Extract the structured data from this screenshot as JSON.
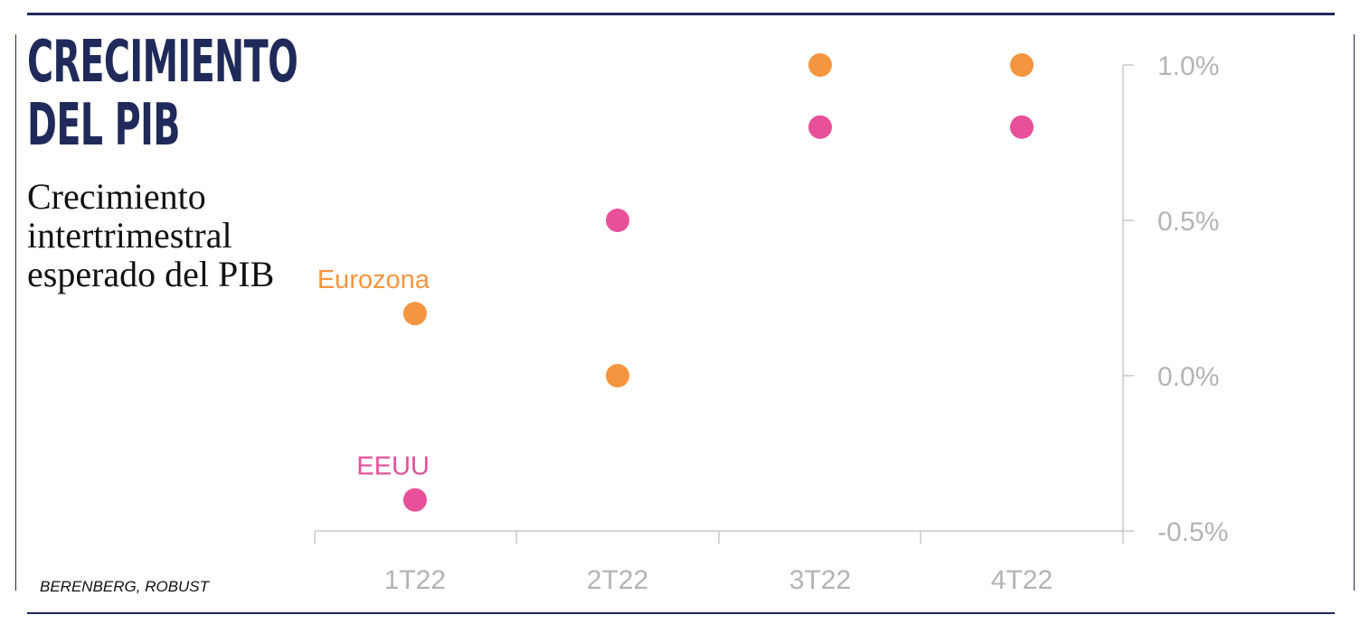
{
  "header": {
    "title_line1": "CRECIMIENTO",
    "title_line2": "DEL PIB",
    "subtitle": "Crecimiento intertrimestral esperado del PIB"
  },
  "footer": {
    "source": "BERENBERG, ROBUST"
  },
  "colors": {
    "rule": "#1f2a5a",
    "axis": "#c8c8c8",
    "tick_text": "#b4b4b4",
    "eurozona": "#f5953f",
    "eeuu": "#e8509a"
  },
  "chart_data": {
    "type": "scatter",
    "title": "CRECIMIENTO DEL PIB",
    "subtitle": "Crecimiento intertrimestral esperado del PIB",
    "categories": [
      "1T22",
      "2T22",
      "3T22",
      "4T22"
    ],
    "y_ticks": [
      "1.0%",
      "0.5%",
      "0.0%",
      "-0.5%"
    ],
    "y_tick_values": [
      1.0,
      0.5,
      0.0,
      -0.5
    ],
    "ylim": [
      -0.5,
      1.0
    ],
    "y_unit": "%",
    "y_axis_position": "right",
    "grid": false,
    "legend": "inline labels beside the 1T22 points",
    "series": [
      {
        "name": "Eurozona",
        "color": "#f5953f",
        "values": [
          0.2,
          0.0,
          1.0,
          1.0
        ]
      },
      {
        "name": "EEUU",
        "color": "#e8509a",
        "values": [
          -0.4,
          0.5,
          0.8,
          0.8
        ]
      }
    ]
  }
}
